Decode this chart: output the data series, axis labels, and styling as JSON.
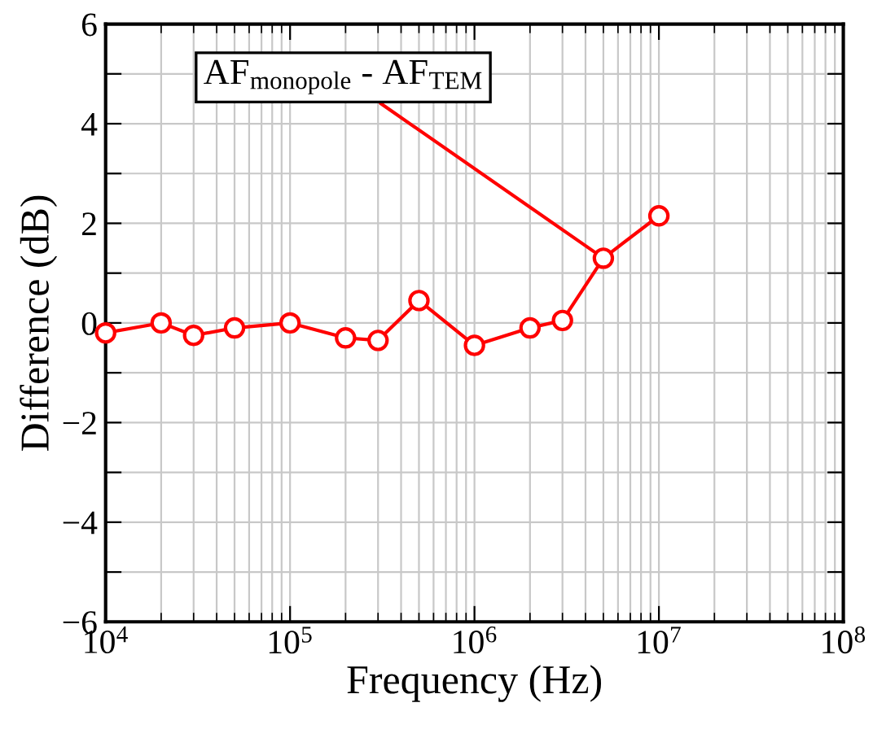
{
  "chart_data": {
    "type": "line",
    "xlabel": "Frequency (Hz)",
    "ylabel": "Difference (dB)",
    "log": "x",
    "xlim": [
      10000,
      100000000
    ],
    "xticks": [
      {
        "value": 10000,
        "label": "10$^{4}$"
      },
      {
        "value": 100000,
        "label": "10$^{5}$"
      },
      {
        "value": 1000000,
        "label": "10$^{6}$"
      },
      {
        "value": 10000000,
        "label": "10$^{7}$"
      },
      {
        "value": 100000000,
        "label": "10$^{8}$"
      }
    ],
    "ylim": [
      -6,
      6
    ],
    "yticks": [
      {
        "value": -6,
        "label": "−6"
      },
      {
        "value": -5,
        "label": null
      },
      {
        "value": -4,
        "label": "−4"
      },
      {
        "value": -3,
        "label": null
      },
      {
        "value": -2,
        "label": "−2"
      },
      {
        "value": -1,
        "label": null
      },
      0,
      {
        "value": 1,
        "label": null
      },
      2,
      {
        "value": 3,
        "label": null
      },
      4,
      {
        "value": 5,
        "label": null
      },
      6
    ],
    "grid": true,
    "marker": "circle",
    "line_style": "solid",
    "x": [
      10000,
      20000,
      30000,
      50000,
      100000,
      200000,
      300000,
      500000,
      1000000,
      2000000,
      3000000,
      5000000,
      10000000
    ],
    "series": [
      {
        "name": "AF$_{monopole}$ - AF$_{TEM}$",
        "color": "#ff0000",
        "values": [
          -0.2,
          0.0,
          -0.25,
          -0.1,
          0.0,
          -0.3,
          -0.35,
          0.45,
          -0.45,
          -0.1,
          0.05,
          1.3,
          2.15
        ]
      }
    ]
  }
}
